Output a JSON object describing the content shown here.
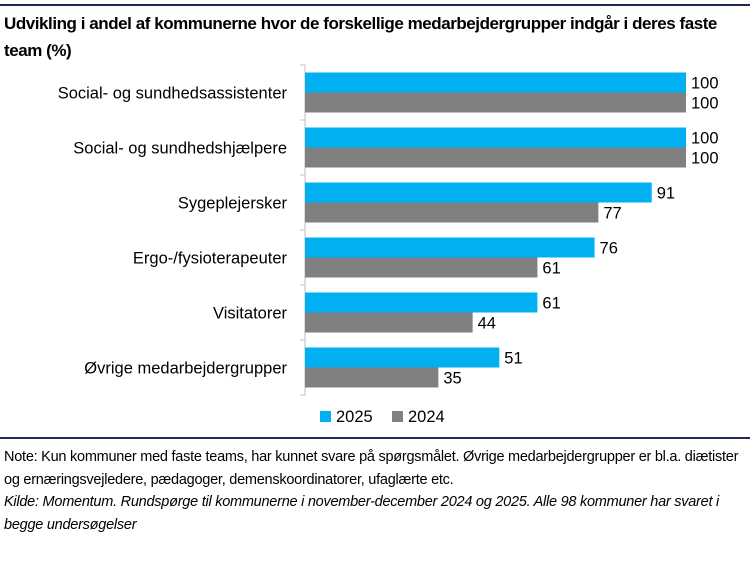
{
  "chart_data": {
    "type": "bar",
    "orientation": "horizontal",
    "title": "Udvikling i andel af kommunerne hvor de forskellige medarbejdergrupper indgår i deres faste team (%)",
    "categories": [
      "Social- og sundhedsassistenter",
      "Social- og sundhedshjælpere",
      "Sygeplejersker",
      "Ergo-/fysioterapeuter",
      "Visitatorer",
      "Øvrige medarbejdergrupper"
    ],
    "series": [
      {
        "name": "2025",
        "color": "#00b0f0",
        "values": [
          100,
          100,
          91,
          76,
          61,
          51
        ]
      },
      {
        "name": "2024",
        "color": "#808080",
        "values": [
          100,
          100,
          77,
          61,
          44,
          35
        ]
      }
    ],
    "xlim": [
      0,
      100
    ],
    "data_labels": true,
    "grid": false,
    "legend": "bottom"
  },
  "note": "Note: Kun kommuner med faste teams, har kunnet svare på spørgsmålet. Øvrige medarbejdergrupper er bl.a. diætister og ernæringsvejledere, pædagoger, demenskoordinatorer, ufaglærte etc.",
  "source": "Kilde: Momentum. Rundspørge til kommunerne i november-december 2024 og 2025. Alle 98 kommuner har svaret i begge undersøgelser"
}
